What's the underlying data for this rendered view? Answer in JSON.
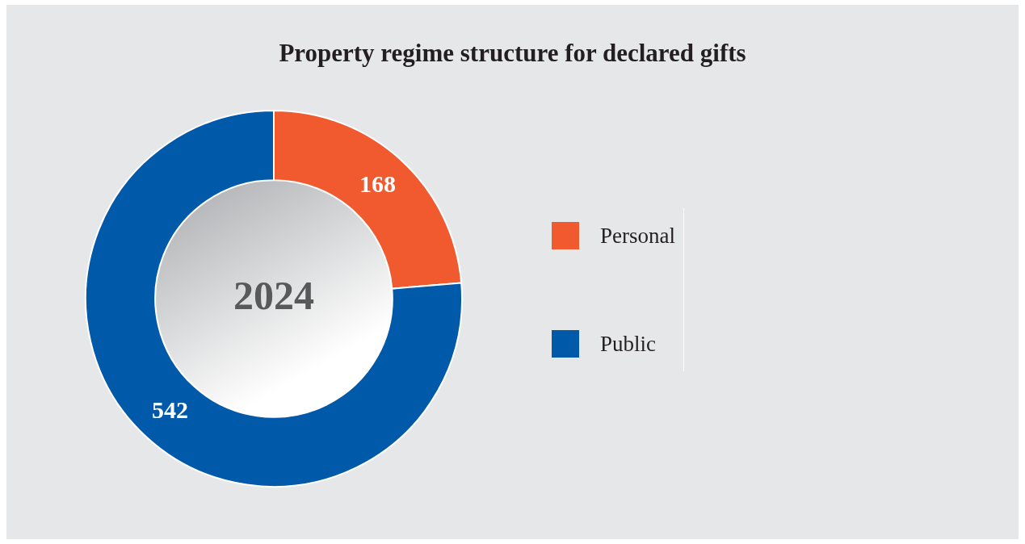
{
  "chart_data": {
    "type": "donut",
    "title": "Property regime structure for declared gifts",
    "categories": [
      "Personal",
      "Public"
    ],
    "values": [
      168,
      542
    ],
    "colors": [
      "#f15a2f",
      "#0059a9"
    ],
    "data_labels": true,
    "legend": "right",
    "annotations": [
      "2024"
    ]
  }
}
